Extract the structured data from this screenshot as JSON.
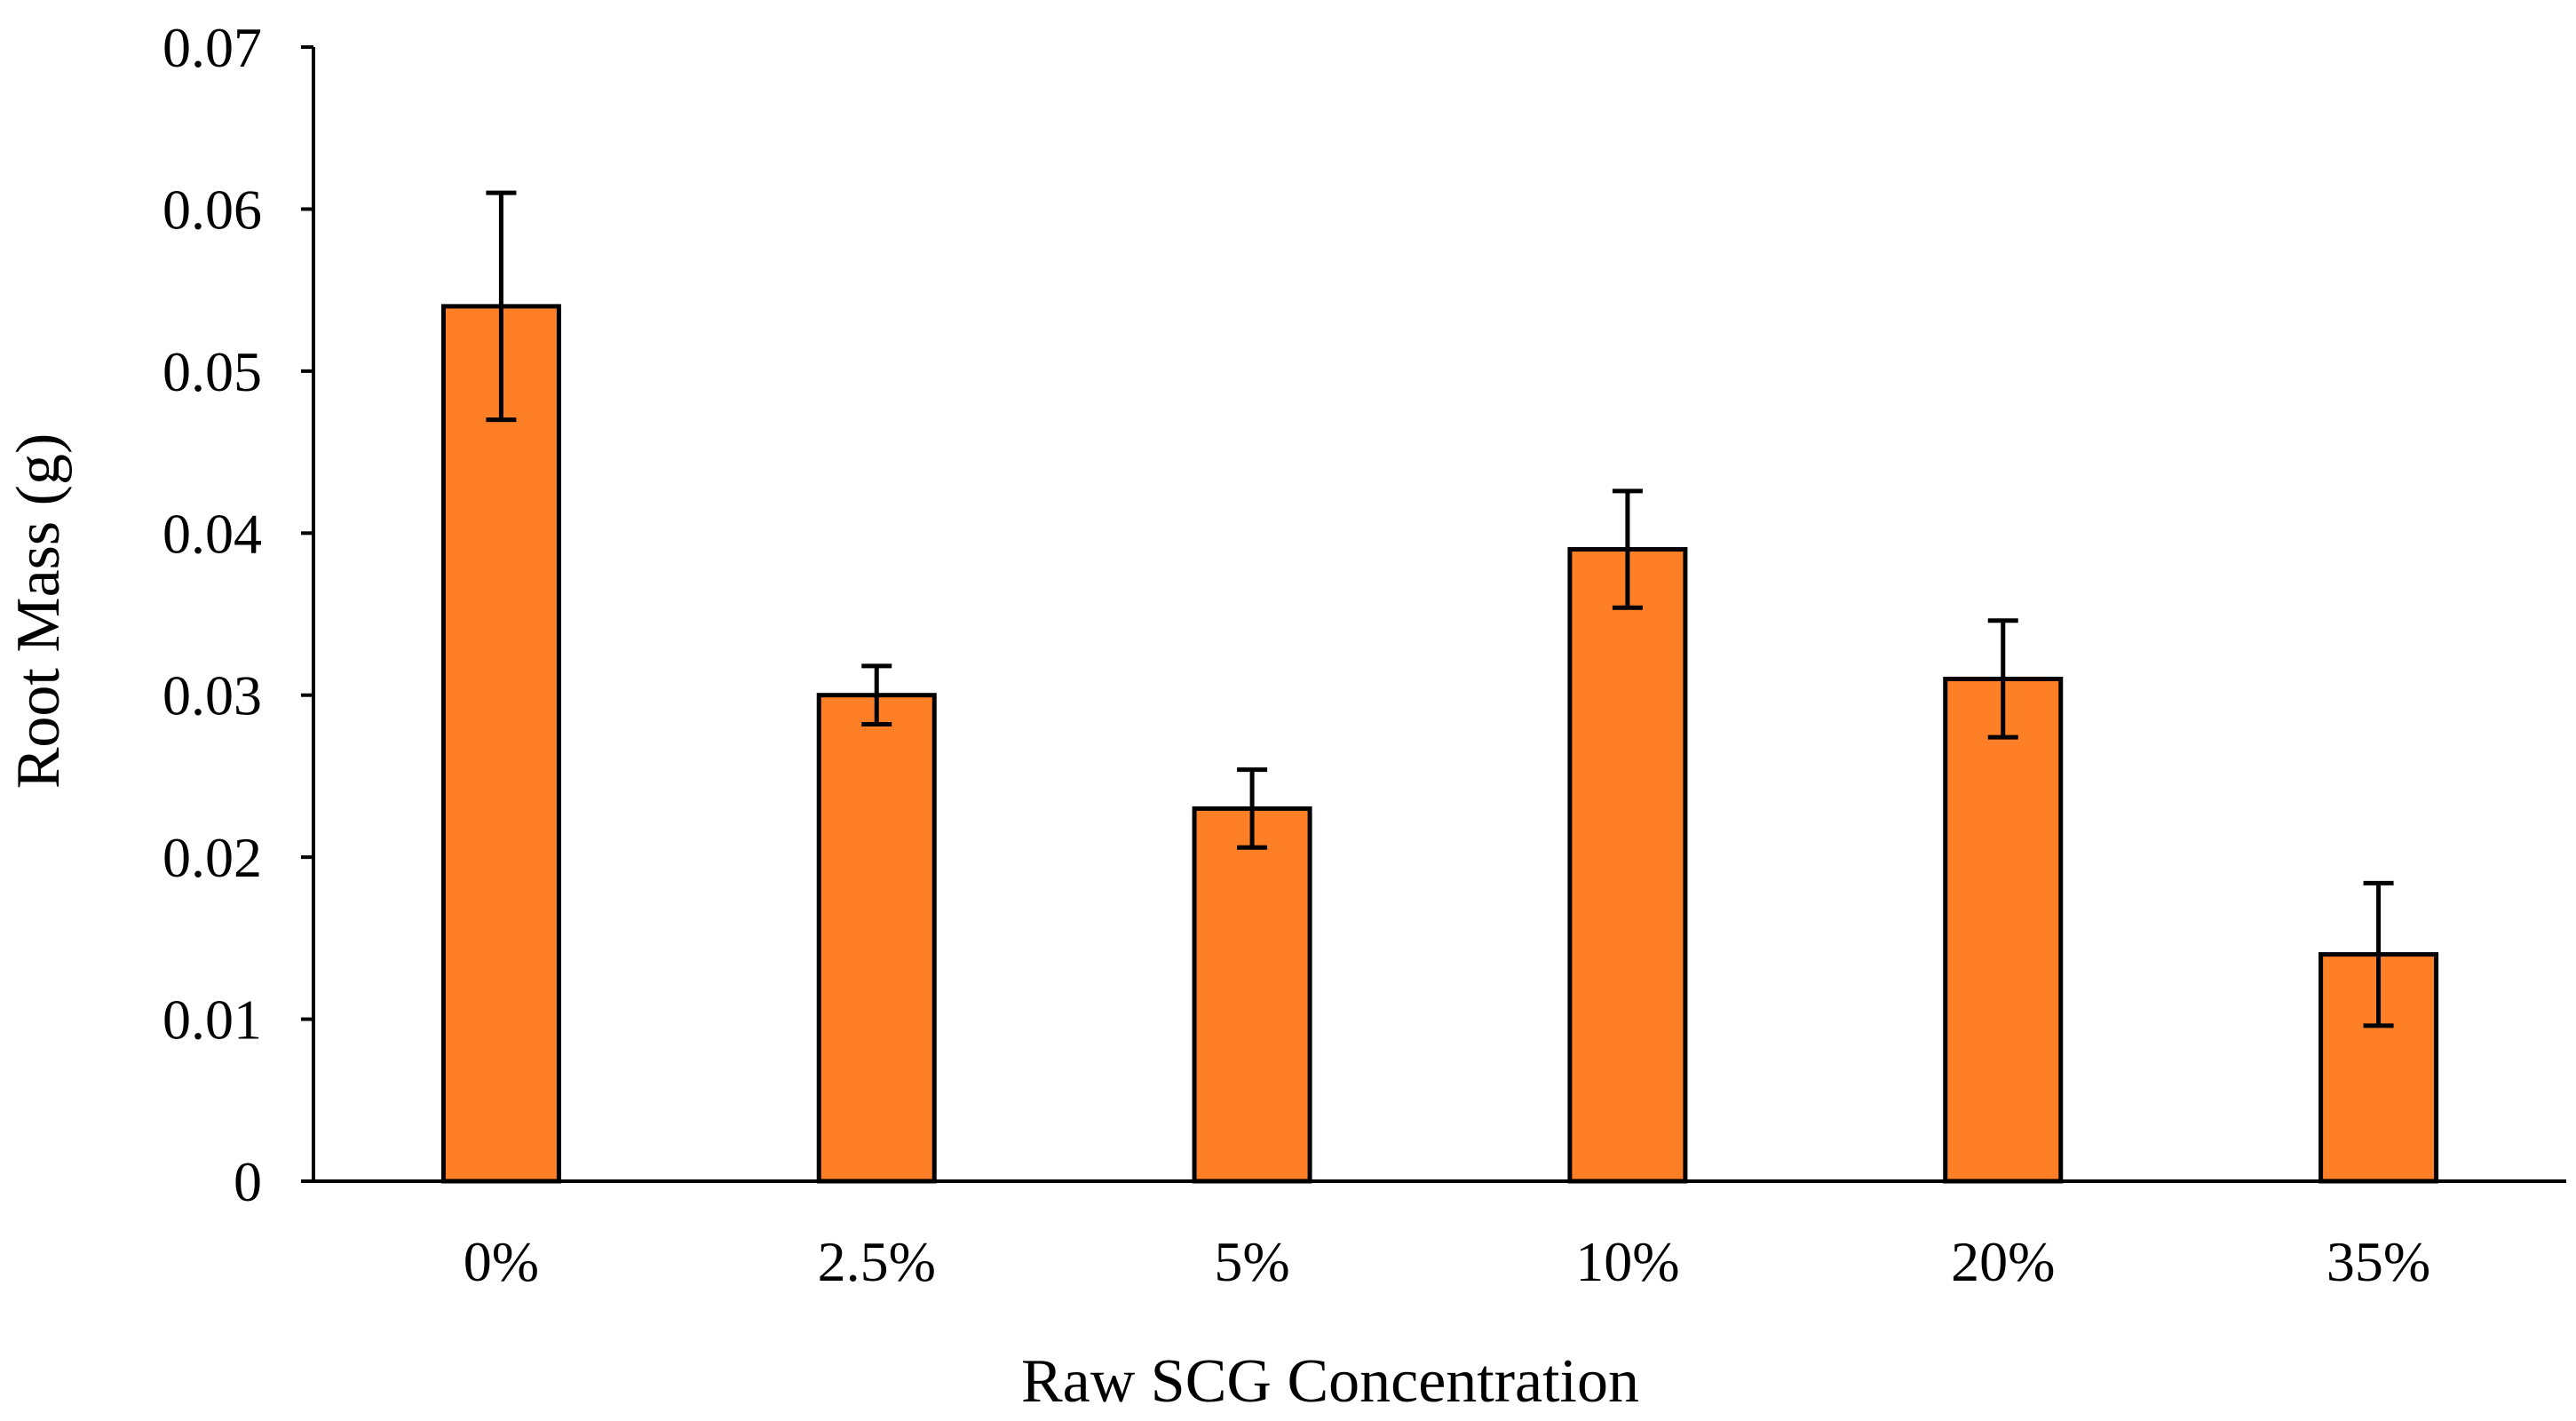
{
  "chart_data": {
    "type": "bar",
    "title": "",
    "xlabel": "Raw SCG Concentration",
    "ylabel": "Root Mass (g)",
    "categories": [
      "0%",
      "2.5%",
      "5%",
      "10%",
      "20%",
      "35%"
    ],
    "values": [
      0.054,
      0.03,
      0.023,
      0.039,
      0.031,
      0.014
    ],
    "errors": [
      0.007,
      0.0018,
      0.0024,
      0.0036,
      0.0036,
      0.0044
    ],
    "ylim": [
      0,
      0.07
    ],
    "yticks": [
      0,
      0.01,
      0.02,
      0.03,
      0.04,
      0.05,
      0.06,
      0.07
    ],
    "ytick_labels": [
      "0",
      "0.01",
      "0.02",
      "0.03",
      "0.04",
      "0.05",
      "0.06",
      "0.07"
    ],
    "grid": false,
    "legend": "none",
    "bar_color": "#FF7F27",
    "edge_color": "#000000"
  }
}
